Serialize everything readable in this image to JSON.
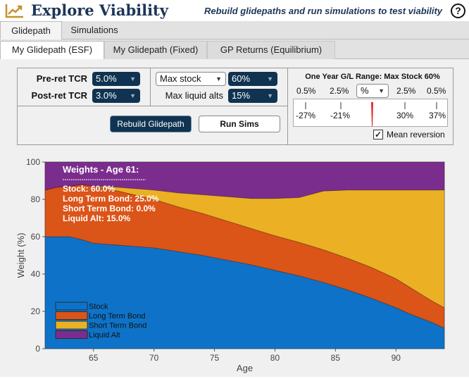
{
  "header": {
    "title": "Explore Viability",
    "tagline": "Rebuild glidepaths and run simulations to test viability",
    "help_icon": "?"
  },
  "tabs_main": [
    {
      "label": "Glidepath",
      "active": true
    },
    {
      "label": "Simulations",
      "active": false
    }
  ],
  "tabs_sub": [
    {
      "label": "My Glidepath (ESF)",
      "active": true
    },
    {
      "label": "My Glidepath (Fixed)",
      "active": false
    },
    {
      "label": "GP Returns (Equilibrium)",
      "active": false
    }
  ],
  "controls": {
    "pre_ret_label": "Pre-ret TCR",
    "pre_ret_value": "5.0%",
    "post_ret_label": "Post-ret TCR",
    "post_ret_value": "3.0%",
    "max_stock_select": "Max stock",
    "max_stock_value": "60%",
    "max_liquid_label": "Max liquid alts",
    "max_liquid_value": "15%",
    "rebuild_button": "Rebuild Glidepath",
    "run_sims_button": "Run Sims"
  },
  "range": {
    "title": "One Year G/L Range: Max Stock 60%",
    "left_top": [
      "0.5%",
      "2.5%"
    ],
    "unit_select": "%",
    "right_top": [
      "2.5%",
      "0.5%"
    ],
    "bottom_labels": [
      "-27%",
      "-21%",
      "30%",
      "37%"
    ],
    "mean_reversion_label": "Mean reversion",
    "mean_reversion_checked": true,
    "marker_color": "#e8232a"
  },
  "chart_data": {
    "type": "area",
    "stacked": true,
    "xlabel": "Age",
    "ylabel": "Weight (%)",
    "xlim": [
      61,
      94
    ],
    "ylim": [
      0,
      100
    ],
    "x_ticks": [
      65,
      70,
      75,
      80,
      85,
      90
    ],
    "y_ticks": [
      0,
      20,
      40,
      60,
      80,
      100
    ],
    "legend_position": "bottom-left",
    "x": [
      61,
      62,
      63,
      64,
      65,
      66,
      67,
      68,
      70,
      72,
      74,
      76,
      78,
      80,
      82,
      84,
      86,
      88,
      90,
      91,
      92,
      93,
      94
    ],
    "series": [
      {
        "name": "Stock",
        "color": "#0e73c8",
        "values": [
          60,
          60,
          60,
          58.5,
          56.5,
          56,
          55.5,
          55,
          54,
          52,
          50,
          47.5,
          45,
          42,
          39,
          35.5,
          31.5,
          27,
          22,
          19,
          16.5,
          14,
          11
        ]
      },
      {
        "name": "Long Term Bond",
        "color": "#db5418",
        "values": [
          25,
          26.5,
          27,
          29.5,
          30.5,
          30,
          29,
          28,
          26,
          24,
          22.5,
          21,
          19.5,
          18.5,
          18,
          17.5,
          17,
          16.5,
          15.5,
          14.5,
          13,
          11.5,
          11
        ]
      },
      {
        "name": "Short Term Bond",
        "color": "#ebb023",
        "values": [
          0,
          0,
          0,
          0,
          0,
          1,
          2,
          3,
          5,
          7.5,
          10,
          13,
          16,
          20,
          24,
          31.5,
          36.5,
          41.5,
          47.5,
          51.5,
          55.5,
          59.5,
          63
        ]
      },
      {
        "name": "Liquid Alt",
        "color": "#7b2d8e",
        "values": [
          15,
          13.5,
          13,
          12,
          13,
          13,
          13.5,
          14,
          15,
          16.5,
          17.5,
          18.5,
          19.5,
          19.5,
          19,
          15.5,
          15,
          15,
          15,
          15,
          15,
          15,
          15
        ]
      }
    ],
    "hover_label": {
      "title": "Weights - Age 61:",
      "lines": [
        "Stock: 60.0%",
        "Long Term Bond: 25.0%",
        "Short Term Bond: 0.0%",
        "Liquid Alt: 15.0%"
      ]
    }
  }
}
